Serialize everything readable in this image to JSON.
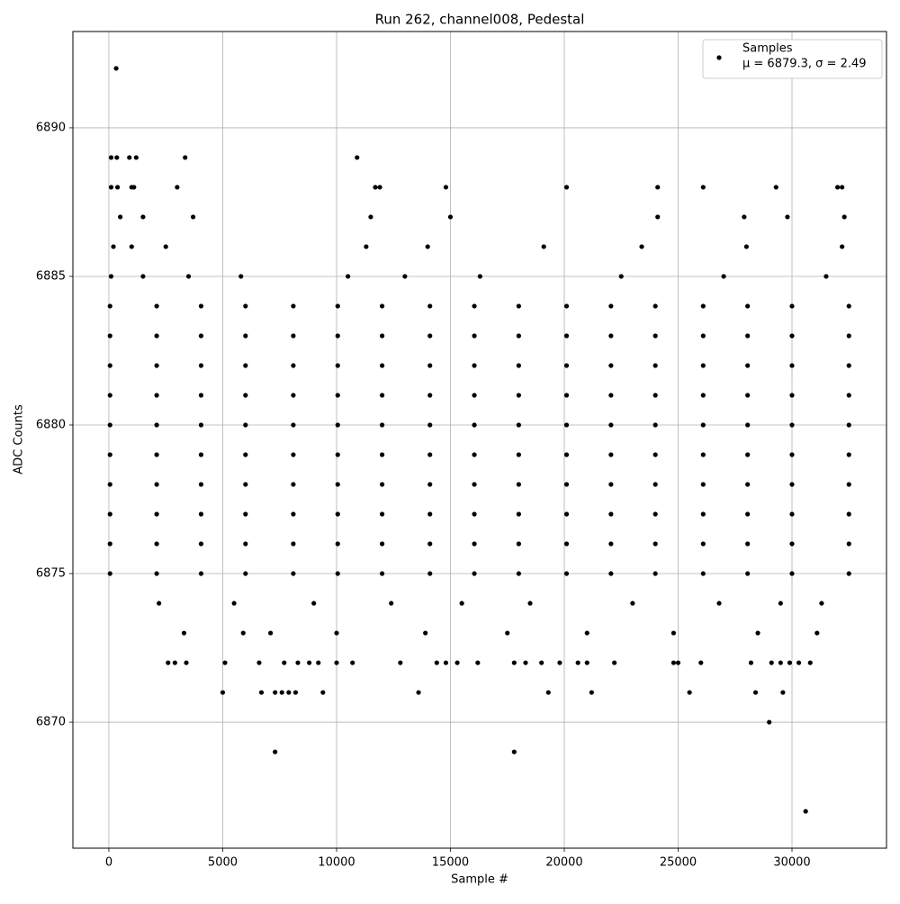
{
  "chart_data": {
    "type": "scatter",
    "title": "Run 262, channel008, Pedestal",
    "xlabel": "Sample #",
    "ylabel": "ADC Counts",
    "legend_stats": "μ = 6879.3, σ = 2.49",
    "legend": "upper right",
    "grid": true,
    "xlim": [
      -1580,
      34150
    ],
    "ylim": [
      6865.76,
      6893.24
    ],
    "xticks": [
      0,
      5000,
      10000,
      15000,
      20000,
      25000,
      30000
    ],
    "yticks": [
      6870,
      6875,
      6880,
      6885,
      6890
    ],
    "series": [
      {
        "name": "Samples",
        "color": "#000000",
        "x": [
          320,
          100,
          350,
          900,
          1200,
          3350,
          10900,
          100,
          380,
          1000,
          1100,
          3000,
          11700,
          11900,
          14800,
          20100,
          24100,
          26100,
          29300,
          32000,
          32200,
          500,
          1500,
          3700,
          11500,
          15000,
          24100,
          27900,
          29800,
          32300,
          200,
          1000,
          2500,
          11300,
          14000,
          19100,
          23400,
          28000,
          32200,
          100,
          1500,
          3500,
          5800,
          10500,
          13000,
          16300,
          22500,
          27000,
          31500,
          50,
          2100,
          4050,
          6000,
          8100,
          10050,
          12000,
          14100,
          16050,
          18000,
          20100,
          22050,
          24000,
          26100,
          28050,
          30000,
          32500,
          50,
          2100,
          4050,
          6000,
          8100,
          10050,
          12000,
          14100,
          16050,
          18000,
          20100,
          22050,
          24000,
          26100,
          28050,
          30000,
          32500,
          50,
          2100,
          4050,
          6000,
          8100,
          10050,
          12000,
          14100,
          16050,
          18000,
          20100,
          22050,
          24000,
          26100,
          28050,
          30000,
          32500,
          50,
          2100,
          4050,
          6000,
          8100,
          10050,
          12000,
          14100,
          16050,
          18000,
          20100,
          22050,
          24000,
          26100,
          28050,
          30000,
          32500,
          50,
          2100,
          4050,
          6000,
          8100,
          10050,
          12000,
          14100,
          16050,
          18000,
          20100,
          22050,
          24000,
          26100,
          28050,
          30000,
          32500,
          50,
          2100,
          4050,
          6000,
          8100,
          10050,
          12000,
          14100,
          16050,
          18000,
          20100,
          22050,
          24000,
          26100,
          28050,
          30000,
          32500,
          50,
          2100,
          4050,
          6000,
          8100,
          10050,
          12000,
          14100,
          16050,
          18000,
          20100,
          22050,
          24000,
          26100,
          28050,
          30000,
          32500,
          50,
          2100,
          4050,
          6000,
          8100,
          10050,
          12000,
          14100,
          16050,
          18000,
          20100,
          22050,
          24000,
          26100,
          28050,
          30000,
          32500,
          50,
          2100,
          4050,
          6000,
          8100,
          10050,
          12000,
          14100,
          16050,
          18000,
          20100,
          22050,
          24000,
          26100,
          28050,
          30000,
          32500,
          50,
          2100,
          4050,
          6000,
          8100,
          10050,
          12000,
          14100,
          16050,
          18000,
          20100,
          22050,
          24000,
          26100,
          28050,
          30000,
          32500,
          2200,
          5500,
          9000,
          12400,
          15500,
          18500,
          23000,
          26800,
          29500,
          31300,
          3300,
          5900,
          7100,
          10000,
          13900,
          17500,
          21000,
          24800,
          28500,
          31100,
          2600,
          2900,
          3400,
          5100,
          6600,
          7700,
          8300,
          8800,
          9200,
          10000,
          10700,
          12800,
          14400,
          14800,
          15300,
          16200,
          17800,
          18300,
          19000,
          19800,
          20600,
          21000,
          22200,
          24800,
          25000,
          26000,
          28200,
          29100,
          29500,
          29900,
          30300,
          30800,
          5000,
          6700,
          7300,
          7600,
          7900,
          8200,
          9400,
          13600,
          19300,
          21200,
          25500,
          28400,
          29600,
          29000,
          7300,
          17800,
          30600
        ],
        "values": [
          6892,
          6889,
          6889,
          6889,
          6889,
          6889,
          6889,
          6888,
          6888,
          6888,
          6888,
          6888,
          6888,
          6888,
          6888,
          6888,
          6888,
          6888,
          6888,
          6888,
          6888,
          6887,
          6887,
          6887,
          6887,
          6887,
          6887,
          6887,
          6887,
          6887,
          6886,
          6886,
          6886,
          6886,
          6886,
          6886,
          6886,
          6886,
          6886,
          6885,
          6885,
          6885,
          6885,
          6885,
          6885,
          6885,
          6885,
          6885,
          6885,
          6884,
          6884,
          6884,
          6884,
          6884,
          6884,
          6884,
          6884,
          6884,
          6884,
          6884,
          6884,
          6884,
          6884,
          6884,
          6884,
          6884,
          6883,
          6883,
          6883,
          6883,
          6883,
          6883,
          6883,
          6883,
          6883,
          6883,
          6883,
          6883,
          6883,
          6883,
          6883,
          6883,
          6883,
          6882,
          6882,
          6882,
          6882,
          6882,
          6882,
          6882,
          6882,
          6882,
          6882,
          6882,
          6882,
          6882,
          6882,
          6882,
          6882,
          6882,
          6881,
          6881,
          6881,
          6881,
          6881,
          6881,
          6881,
          6881,
          6881,
          6881,
          6881,
          6881,
          6881,
          6881,
          6881,
          6881,
          6881,
          6880,
          6880,
          6880,
          6880,
          6880,
          6880,
          6880,
          6880,
          6880,
          6880,
          6880,
          6880,
          6880,
          6880,
          6880,
          6880,
          6880,
          6879,
          6879,
          6879,
          6879,
          6879,
          6879,
          6879,
          6879,
          6879,
          6879,
          6879,
          6879,
          6879,
          6879,
          6879,
          6879,
          6879,
          6878,
          6878,
          6878,
          6878,
          6878,
          6878,
          6878,
          6878,
          6878,
          6878,
          6878,
          6878,
          6878,
          6878,
          6878,
          6878,
          6878,
          6877,
          6877,
          6877,
          6877,
          6877,
          6877,
          6877,
          6877,
          6877,
          6877,
          6877,
          6877,
          6877,
          6877,
          6877,
          6877,
          6877,
          6876,
          6876,
          6876,
          6876,
          6876,
          6876,
          6876,
          6876,
          6876,
          6876,
          6876,
          6876,
          6876,
          6876,
          6876,
          6876,
          6876,
          6875,
          6875,
          6875,
          6875,
          6875,
          6875,
          6875,
          6875,
          6875,
          6875,
          6875,
          6875,
          6875,
          6875,
          6875,
          6875,
          6875,
          6874,
          6874,
          6874,
          6874,
          6874,
          6874,
          6874,
          6874,
          6874,
          6874,
          6873,
          6873,
          6873,
          6873,
          6873,
          6873,
          6873,
          6873,
          6873,
          6873,
          6872,
          6872,
          6872,
          6872,
          6872,
          6872,
          6872,
          6872,
          6872,
          6872,
          6872,
          6872,
          6872,
          6872,
          6872,
          6872,
          6872,
          6872,
          6872,
          6872,
          6872,
          6872,
          6872,
          6872,
          6872,
          6872,
          6872,
          6872,
          6872,
          6872,
          6872,
          6872,
          6871,
          6871,
          6871,
          6871,
          6871,
          6871,
          6871,
          6871,
          6871,
          6871,
          6871,
          6871,
          6871,
          6870,
          6869,
          6869,
          6867
        ]
      }
    ]
  }
}
